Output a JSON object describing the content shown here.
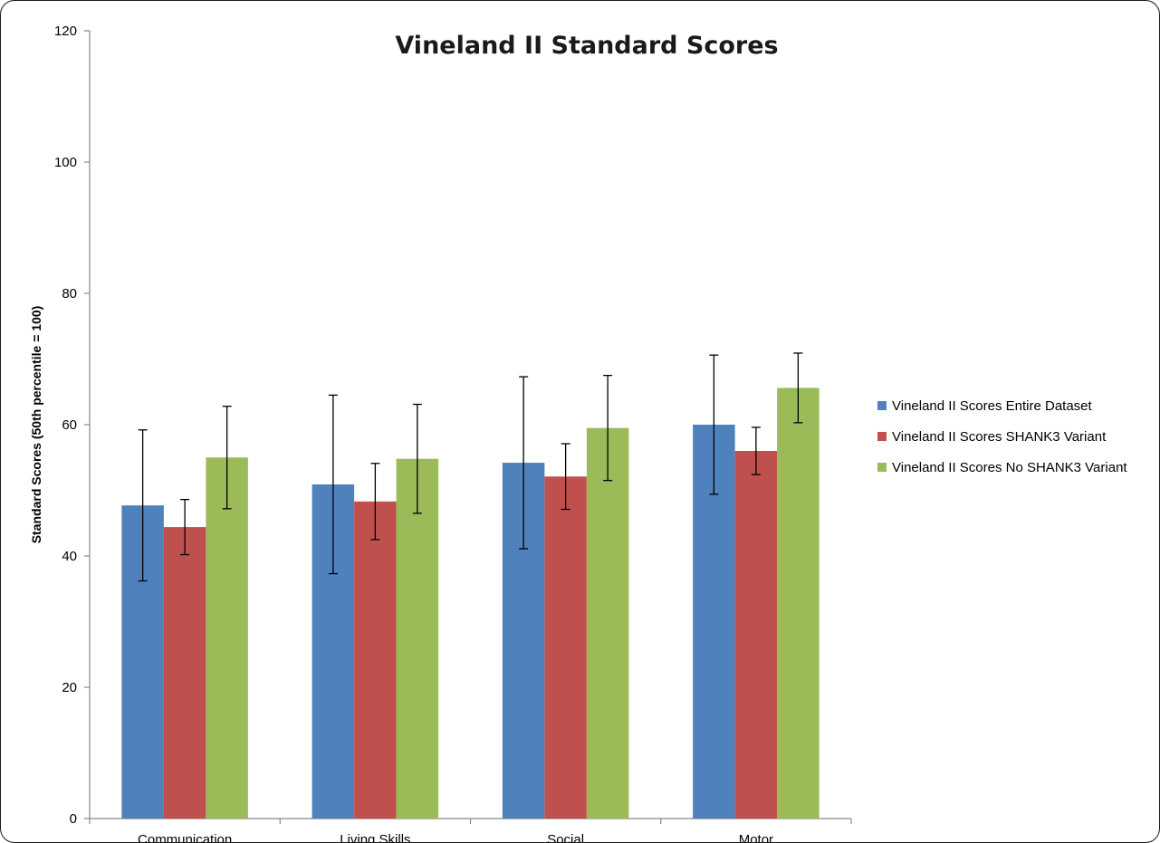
{
  "chart_data": {
    "type": "bar",
    "title": "Vineland II Standard Scores",
    "xlabel": "",
    "ylabel": "Standard Scores (50th percentile = 100)",
    "ylim": [
      0,
      120
    ],
    "yticks": [
      0,
      20,
      40,
      60,
      80,
      100,
      120
    ],
    "grid": false,
    "legend_position": "right",
    "categories": [
      "Communication",
      "Living Skills",
      "Social",
      "Motor"
    ],
    "series": [
      {
        "name": "Vineland II Scores Entire Dataset",
        "color": "#4f81bd",
        "values": [
          47.7,
          50.9,
          54.2,
          60.0
        ],
        "error": [
          11.5,
          13.6,
          13.1,
          10.6
        ]
      },
      {
        "name": "Vineland II Scores SHANK3 Variant",
        "color": "#c0504d",
        "values": [
          44.4,
          48.3,
          52.1,
          56.0
        ],
        "error": [
          4.2,
          5.8,
          5.0,
          3.6
        ]
      },
      {
        "name": "Vineland II Scores No SHANK3 Variant",
        "color": "#9bbb59",
        "values": [
          55.0,
          54.8,
          59.5,
          65.6
        ],
        "error": [
          7.8,
          8.3,
          8.0,
          5.3
        ]
      }
    ]
  }
}
